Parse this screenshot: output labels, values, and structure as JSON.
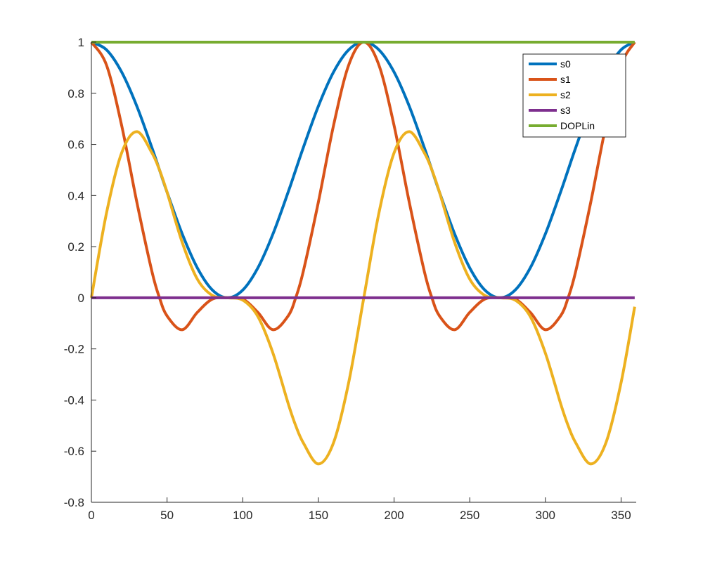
{
  "chart_data": {
    "type": "line",
    "title": "",
    "xlabel": "",
    "ylabel": "",
    "xlim": [
      0,
      360
    ],
    "ylim": [
      -0.8,
      1
    ],
    "xticks": [
      0,
      50,
      100,
      150,
      200,
      250,
      300,
      350
    ],
    "yticks": [
      -0.8,
      -0.6,
      -0.4,
      -0.2,
      0,
      0.2,
      0.4,
      0.6,
      0.8,
      1
    ],
    "xtick_labels": [
      "0",
      "50",
      "100",
      "150",
      "200",
      "250",
      "300",
      "350"
    ],
    "ytick_labels": [
      "-0.8",
      "-0.6",
      "-0.4",
      "-0.2",
      "0",
      "0.2",
      "0.4",
      "0.6",
      "0.8",
      "1"
    ],
    "grid": false,
    "legend_position": "top-right",
    "x": [
      0,
      10,
      20,
      30,
      40,
      45,
      50,
      60,
      70,
      80,
      90,
      100,
      110,
      120,
      130,
      135,
      140,
      150,
      160,
      170,
      180,
      190,
      200,
      210,
      220,
      225,
      230,
      240,
      250,
      260,
      270,
      280,
      290,
      300,
      310,
      315,
      320,
      330,
      340,
      350,
      359
    ],
    "series": [
      {
        "name": "s0",
        "color": "#0072BD",
        "values": [
          1,
          0.97,
          0.883,
          0.75,
          0.587,
          0.5,
          0.413,
          0.25,
          0.117,
          0.03,
          0,
          0.03,
          0.117,
          0.25,
          0.413,
          0.5,
          0.587,
          0.75,
          0.883,
          0.97,
          1,
          0.97,
          0.883,
          0.75,
          0.587,
          0.5,
          0.413,
          0.25,
          0.117,
          0.03,
          0,
          0.03,
          0.117,
          0.25,
          0.413,
          0.5,
          0.587,
          0.75,
          0.883,
          0.97,
          1
        ]
      },
      {
        "name": "s1",
        "color": "#D95319",
        "values": [
          1,
          0.91,
          0.674,
          0.375,
          0.103,
          0,
          -0.071,
          -0.125,
          -0.057,
          -0.005,
          0,
          -0.005,
          -0.057,
          -0.125,
          -0.071,
          0,
          0.103,
          0.375,
          0.674,
          0.91,
          1,
          0.91,
          0.674,
          0.375,
          0.103,
          0,
          -0.071,
          -0.125,
          -0.057,
          -0.005,
          0,
          -0.005,
          -0.057,
          -0.125,
          -0.071,
          0,
          0.103,
          0.375,
          0.674,
          0.91,
          1
        ]
      },
      {
        "name": "s2",
        "color": "#EDB120",
        "values": [
          0,
          0.332,
          0.567,
          0.65,
          0.567,
          0.5,
          0.413,
          0.217,
          0.073,
          0.009,
          0,
          -0.009,
          -0.073,
          -0.217,
          -0.413,
          -0.5,
          -0.567,
          -0.65,
          -0.567,
          -0.332,
          0,
          0.332,
          0.567,
          0.65,
          0.567,
          0.5,
          0.413,
          0.217,
          0.073,
          0.009,
          0,
          -0.009,
          -0.073,
          -0.217,
          -0.413,
          -0.5,
          -0.567,
          -0.65,
          -0.567,
          -0.332,
          -0.035
        ]
      },
      {
        "name": "s3",
        "color": "#7E2F8E",
        "values": [
          0,
          0,
          0,
          0,
          0,
          0,
          0,
          0,
          0,
          0,
          0,
          0,
          0,
          0,
          0,
          0,
          0,
          0,
          0,
          0,
          0,
          0,
          0,
          0,
          0,
          0,
          0,
          0,
          0,
          0,
          0,
          0,
          0,
          0,
          0,
          0,
          0,
          0,
          0,
          0,
          0
        ]
      },
      {
        "name": "DOPLin",
        "color": "#77AC30",
        "values": [
          1,
          1,
          1,
          1,
          1,
          1,
          1,
          1,
          1,
          1,
          1,
          1,
          1,
          1,
          1,
          1,
          1,
          1,
          1,
          1,
          1,
          1,
          1,
          1,
          1,
          1,
          1,
          1,
          1,
          1,
          1,
          1,
          1,
          1,
          1,
          1,
          1,
          1,
          1,
          1,
          1
        ]
      }
    ]
  }
}
